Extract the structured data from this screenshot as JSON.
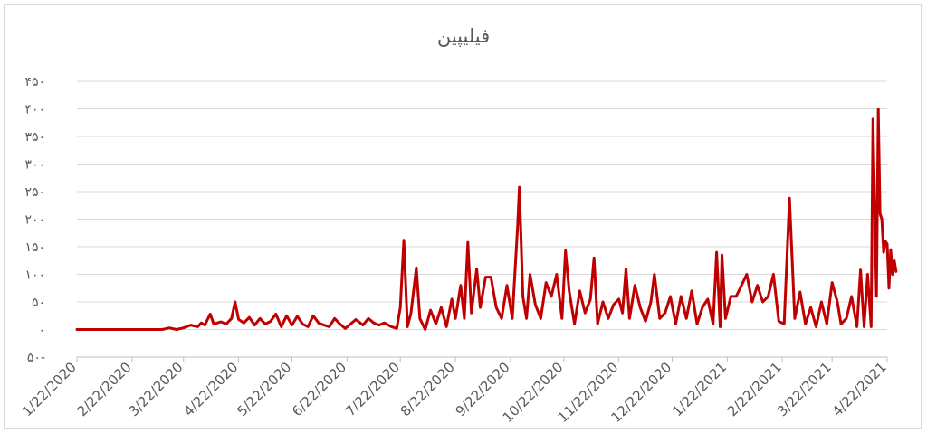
{
  "chart_data": {
    "type": "line",
    "title": "فیلیپین",
    "xlabel": "",
    "ylabel": "",
    "ylim": [
      -50,
      450
    ],
    "y_ticks": [
      {
        "value": 450,
        "label": "۴۵۰"
      },
      {
        "value": 400,
        "label": "۴۰۰"
      },
      {
        "value": 350,
        "label": "۳۵۰"
      },
      {
        "value": 300,
        "label": "۳۰۰"
      },
      {
        "value": 250,
        "label": "۲۵۰"
      },
      {
        "value": 200,
        "label": "۲۰۰"
      },
      {
        "value": 150,
        "label": "۱۵۰"
      },
      {
        "value": 100,
        "label": "۱۰۰"
      },
      {
        "value": 50,
        "label": "۵۰"
      },
      {
        "value": 0,
        "label": "۰"
      },
      {
        "value": -50,
        "label": "۵۰-"
      }
    ],
    "x_ticks": [
      "1/22/2020",
      "2/22/2020",
      "3/22/2020",
      "4/22/2020",
      "5/22/2020",
      "6/22/2020",
      "7/22/2020",
      "8/22/2020",
      "9/22/2020",
      "10/22/2020",
      "11/22/2020",
      "12/22/2020",
      "1/22/2021",
      "2/22/2021",
      "3/22/2021",
      "4/22/2021"
    ],
    "grid": true,
    "legend": "none",
    "colors": {
      "line": "#c00000",
      "grid": "#d9d9d9",
      "axis": "#bfbfbf",
      "text": "#595959"
    },
    "series": [
      {
        "points": [
          [
            "1/22/2020",
            0
          ],
          [
            "2/22/2020",
            0
          ],
          [
            "3/10/2020",
            0
          ],
          [
            "3/14/2020",
            3
          ],
          [
            "3/18/2020",
            0
          ],
          [
            "3/22/2020",
            3
          ],
          [
            "3/26/2020",
            8
          ],
          [
            "3/30/2020",
            5
          ],
          [
            "4/1/2020",
            12
          ],
          [
            "4/3/2020",
            8
          ],
          [
            "4/6/2020",
            28
          ],
          [
            "4/8/2020",
            10
          ],
          [
            "4/12/2020",
            14
          ],
          [
            "4/15/2020",
            10
          ],
          [
            "4/18/2020",
            20
          ],
          [
            "4/20/2020",
            50
          ],
          [
            "4/22/2020",
            18
          ],
          [
            "4/25/2020",
            12
          ],
          [
            "4/28/2020",
            22
          ],
          [
            "5/1/2020",
            8
          ],
          [
            "5/4/2020",
            20
          ],
          [
            "5/7/2020",
            10
          ],
          [
            "5/10/2020",
            15
          ],
          [
            "5/13/2020",
            28
          ],
          [
            "5/16/2020",
            5
          ],
          [
            "5/19/2020",
            25
          ],
          [
            "5/22/2020",
            8
          ],
          [
            "5/25/2020",
            24
          ],
          [
            "5/28/2020",
            10
          ],
          [
            "5/31/2020",
            5
          ],
          [
            "6/3/2020",
            25
          ],
          [
            "6/6/2020",
            12
          ],
          [
            "6/9/2020",
            8
          ],
          [
            "6/12/2020",
            5
          ],
          [
            "6/15/2020",
            20
          ],
          [
            "6/18/2020",
            10
          ],
          [
            "6/21/2020",
            2
          ],
          [
            "6/24/2020",
            10
          ],
          [
            "6/27/2020",
            18
          ],
          [
            "7/1/2020",
            8
          ],
          [
            "7/4/2020",
            20
          ],
          [
            "7/7/2020",
            12
          ],
          [
            "7/10/2020",
            8
          ],
          [
            "7/13/2020",
            12
          ],
          [
            "7/17/2020",
            5
          ],
          [
            "7/20/2020",
            2
          ],
          [
            "7/22/2020",
            40
          ],
          [
            "7/24/2020",
            162
          ],
          [
            "7/26/2020",
            5
          ],
          [
            "7/28/2020",
            30
          ],
          [
            "7/31/2020",
            112
          ],
          [
            "8/2/2020",
            20
          ],
          [
            "8/5/2020",
            0
          ],
          [
            "8/8/2020",
            35
          ],
          [
            "8/11/2020",
            10
          ],
          [
            "8/14/2020",
            40
          ],
          [
            "8/17/2020",
            5
          ],
          [
            "8/20/2020",
            55
          ],
          [
            "8/22/2020",
            20
          ],
          [
            "8/25/2020",
            80
          ],
          [
            "8/27/2020",
            20
          ],
          [
            "8/29/2020",
            158
          ],
          [
            "8/31/2020",
            30
          ],
          [
            "9/3/2020",
            110
          ],
          [
            "9/5/2020",
            40
          ],
          [
            "9/8/2020",
            95
          ],
          [
            "9/11/2020",
            95
          ],
          [
            "9/14/2020",
            40
          ],
          [
            "9/17/2020",
            20
          ],
          [
            "9/20/2020",
            80
          ],
          [
            "9/23/2020",
            20
          ],
          [
            "9/26/2020",
            188
          ],
          [
            "9/27/2020",
            258
          ],
          [
            "9/29/2020",
            60
          ],
          [
            "10/1/2020",
            20
          ],
          [
            "10/3/2020",
            100
          ],
          [
            "10/6/2020",
            45
          ],
          [
            "10/9/2020",
            20
          ],
          [
            "10/12/2020",
            85
          ],
          [
            "10/15/2020",
            60
          ],
          [
            "10/18/2020",
            100
          ],
          [
            "10/21/2020",
            20
          ],
          [
            "10/23/2020",
            143
          ],
          [
            "10/25/2020",
            70
          ],
          [
            "10/28/2020",
            10
          ],
          [
            "10/31/2020",
            70
          ],
          [
            "11/3/2020",
            30
          ],
          [
            "11/6/2020",
            55
          ],
          [
            "11/8/2020",
            130
          ],
          [
            "11/10/2020",
            10
          ],
          [
            "11/13/2020",
            50
          ],
          [
            "11/16/2020",
            20
          ],
          [
            "11/19/2020",
            45
          ],
          [
            "11/22/2020",
            55
          ],
          [
            "11/24/2020",
            30
          ],
          [
            "11/26/2020",
            110
          ],
          [
            "11/28/2020",
            20
          ],
          [
            "12/1/2020",
            80
          ],
          [
            "12/4/2020",
            40
          ],
          [
            "12/7/2020",
            15
          ],
          [
            "12/10/2020",
            50
          ],
          [
            "12/12/2020",
            100
          ],
          [
            "12/15/2020",
            20
          ],
          [
            "12/18/2020",
            30
          ],
          [
            "12/21/2020",
            60
          ],
          [
            "12/24/2020",
            10
          ],
          [
            "12/27/2020",
            60
          ],
          [
            "12/30/2020",
            20
          ],
          [
            "1/2/2021",
            70
          ],
          [
            "1/5/2021",
            10
          ],
          [
            "1/8/2021",
            40
          ],
          [
            "1/11/2021",
            55
          ],
          [
            "1/14/2021",
            10
          ],
          [
            "1/16/2021",
            140
          ],
          [
            "1/18/2021",
            5
          ],
          [
            "1/19/2021",
            135
          ],
          [
            "1/21/2021",
            20
          ],
          [
            "1/24/2021",
            60
          ],
          [
            "1/27/2021",
            60
          ],
          [
            "1/30/2021",
            80
          ],
          [
            "2/2/2021",
            100
          ],
          [
            "2/5/2021",
            50
          ],
          [
            "2/8/2021",
            80
          ],
          [
            "2/11/2021",
            50
          ],
          [
            "2/14/2021",
            60
          ],
          [
            "2/17/2021",
            100
          ],
          [
            "2/20/2021",
            15
          ],
          [
            "2/23/2021",
            10
          ],
          [
            "2/26/2021",
            238
          ],
          [
            "3/1/2021",
            20
          ],
          [
            "3/4/2021",
            68
          ],
          [
            "3/7/2021",
            10
          ],
          [
            "3/10/2021",
            40
          ],
          [
            "3/13/2021",
            5
          ],
          [
            "3/16/2021",
            50
          ],
          [
            "3/19/2021",
            10
          ],
          [
            "3/22/2021",
            85
          ],
          [
            "3/25/2021",
            50
          ],
          [
            "3/27/2021",
            10
          ],
          [
            "3/30/2021",
            20
          ],
          [
            "4/2/2021",
            60
          ],
          [
            "4/5/2021",
            5
          ],
          [
            "4/7/2021",
            108
          ],
          [
            "4/9/2021",
            5
          ],
          [
            "4/11/2021",
            100
          ],
          [
            "4/13/2021",
            5
          ],
          [
            "4/14/2021",
            383
          ],
          [
            "4/16/2021",
            60
          ],
          [
            "4/17/2021",
            400
          ],
          [
            "4/18/2021",
            210
          ],
          [
            "4/19/2021",
            200
          ],
          [
            "4/20/2021",
            140
          ],
          [
            "4/21/2021",
            160
          ],
          [
            "4/22/2021",
            155
          ],
          [
            "4/23/2021",
            75
          ],
          [
            "4/24/2021",
            145
          ],
          [
            "4/25/2021",
            100
          ],
          [
            "4/26/2021",
            125
          ],
          [
            "4/27/2021",
            105
          ]
        ]
      }
    ]
  }
}
